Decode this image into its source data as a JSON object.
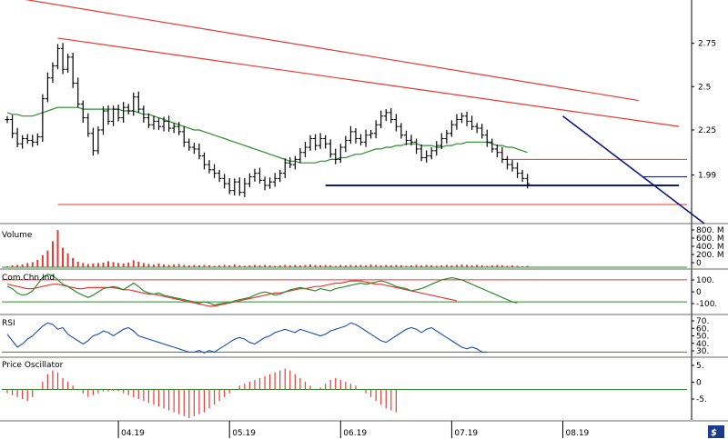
{
  "colors": {
    "background": "#ffffff",
    "price_bars": "#000000",
    "trend_channel": "#e53935",
    "moving_average": "#2e8b2e",
    "trendline": "#0d1a80",
    "volume_bars": "#e53935",
    "cci_fast": "#2e8b2e",
    "cci_slow": "#e53935",
    "rsi_line": "#1f4fb0",
    "oscillator_bars": "#e53935",
    "reference_lines": "#2e8b2e"
  },
  "x_axis": {
    "labels": [
      "04.19",
      "05.19",
      "06.19",
      "07.19",
      "08.19"
    ],
    "label_index": [
      22,
      44,
      66,
      88,
      110
    ]
  },
  "panels": {
    "volume": {
      "label": "Volume",
      "ticks": [
        "800. M",
        "600. M",
        "400. M",
        "200. M",
        "0"
      ]
    },
    "cci": {
      "label": "Com.Chn.Ind",
      "ticks": [
        "100.",
        "0",
        "-100."
      ]
    },
    "rsi": {
      "label": "RSI",
      "ticks": [
        "70.",
        "60.",
        "50.",
        "40.",
        "30."
      ]
    },
    "osc": {
      "label": "Price Oscillator",
      "ticks": [
        "5.",
        "0",
        "-5."
      ]
    }
  },
  "chart_data": [
    {
      "type": "ohlc",
      "y_ticks": [
        "2.75",
        "2.5",
        "2.25",
        "1.99"
      ],
      "y_tick_values": [
        2.75,
        2.5,
        2.25,
        1.99
      ],
      "ylim": [
        1.72,
        3.0
      ],
      "close": [
        2.31,
        2.23,
        2.17,
        2.2,
        2.19,
        2.18,
        2.21,
        2.43,
        2.55,
        2.62,
        2.72,
        2.6,
        2.67,
        2.52,
        2.4,
        2.32,
        2.23,
        2.13,
        2.25,
        2.36,
        2.3,
        2.37,
        2.32,
        2.38,
        2.36,
        2.44,
        2.37,
        2.32,
        2.28,
        2.3,
        2.27,
        2.3,
        2.26,
        2.27,
        2.24,
        2.18,
        2.15,
        2.14,
        2.1,
        2.05,
        2.02,
        2.0,
        1.97,
        1.94,
        1.9,
        1.95,
        1.89,
        1.94,
        1.98,
        2.0,
        1.96,
        1.93,
        1.95,
        1.97,
        2.0,
        2.06,
        2.05,
        2.08,
        2.12,
        2.15,
        2.2,
        2.16,
        2.2,
        2.17,
        2.11,
        2.08,
        2.15,
        2.19,
        2.24,
        2.2,
        2.18,
        2.22,
        2.23,
        2.28,
        2.33,
        2.35,
        2.31,
        2.27,
        2.22,
        2.19,
        2.18,
        2.14,
        2.09,
        2.1,
        2.13,
        2.16,
        2.2,
        2.23,
        2.28,
        2.31,
        2.33,
        2.3,
        2.27,
        2.26,
        2.22,
        2.18,
        2.14,
        2.12,
        2.08,
        2.05,
        2.03,
        2.0,
        1.97,
        1.94
      ],
      "trend_channel": {
        "upper": {
          "from": [
            0,
            3.02
          ],
          "to": [
            125,
            2.42
          ]
        },
        "lower": {
          "from": [
            10,
            2.78
          ],
          "to": [
            133,
            2.27
          ]
        }
      },
      "moving_average": [
        2.35,
        2.34,
        2.34,
        2.33,
        2.33,
        2.33,
        2.34,
        2.35,
        2.36,
        2.37,
        2.38,
        2.38,
        2.38,
        2.38,
        2.38,
        2.37,
        2.37,
        2.37,
        2.37,
        2.37,
        2.37,
        2.37,
        2.37,
        2.36,
        2.36,
        2.36,
        2.35,
        2.34,
        2.34,
        2.33,
        2.32,
        2.31,
        2.3,
        2.29,
        2.28,
        2.27,
        2.26,
        2.25,
        2.25,
        2.24,
        2.23,
        2.22,
        2.21,
        2.2,
        2.19,
        2.18,
        2.17,
        2.16,
        2.15,
        2.14,
        2.13,
        2.12,
        2.11,
        2.1,
        2.09,
        2.08,
        2.07,
        2.07,
        2.06,
        2.06,
        2.06,
        2.06,
        2.07,
        2.07,
        2.08,
        2.08,
        2.09,
        2.09,
        2.1,
        2.11,
        2.11,
        2.12,
        2.13,
        2.14,
        2.14,
        2.15,
        2.15,
        2.16,
        2.16,
        2.17,
        2.17,
        2.17,
        2.16,
        2.16,
        2.16,
        2.15,
        2.15,
        2.16,
        2.16,
        2.17,
        2.17,
        2.18,
        2.18,
        2.18,
        2.18,
        2.18,
        2.17,
        2.16,
        2.16,
        2.15,
        2.15,
        2.14,
        2.13,
        2.12
      ],
      "horizontal_lines": [
        {
          "y": 1.93,
          "from": 63,
          "to": 133,
          "color": "trendline",
          "width": 2
        },
        {
          "y": 1.98,
          "from": 126,
          "to": 137,
          "color": "trendline",
          "width": 1
        },
        {
          "y": 2.08,
          "from": 98,
          "to": 137,
          "color": "trend_channel",
          "width": 1
        },
        {
          "y": 1.82,
          "from": 10,
          "to": 137,
          "color": "trend_channel",
          "width": 1
        }
      ],
      "downtrend_line": {
        "from": [
          110,
          2.33
        ],
        "to": [
          138,
          1.71
        ]
      }
    },
    {
      "type": "bar",
      "name": "Volume",
      "ylim": [
        0,
        900
      ],
      "values": [
        20,
        40,
        50,
        60,
        90,
        110,
        160,
        260,
        360,
        560,
        800,
        420,
        300,
        200,
        120,
        90,
        70,
        80,
        90,
        100,
        130,
        110,
        90,
        80,
        100,
        150,
        120,
        90,
        70,
        60,
        80,
        60,
        50,
        60,
        70,
        50,
        40,
        50,
        40,
        50,
        40,
        30,
        40,
        50,
        40,
        60,
        40,
        30,
        40,
        50,
        40,
        50,
        40,
        30,
        40,
        50,
        40,
        50,
        40,
        50,
        60,
        50,
        40,
        50,
        40,
        30,
        50,
        40,
        50,
        40,
        50,
        40,
        60,
        50,
        40,
        50,
        40,
        50,
        40,
        30,
        40,
        50,
        40,
        50,
        40,
        30,
        40,
        50,
        40,
        50,
        60,
        50,
        40,
        50,
        40,
        30,
        40,
        50,
        40,
        30,
        40,
        30,
        20,
        30
      ]
    },
    {
      "type": "line",
      "name": "Com.Chn.Ind",
      "ylim": [
        -190,
        190
      ],
      "reference_lines": [
        100,
        -100
      ],
      "fast": [
        40,
        20,
        -20,
        -40,
        -30,
        0,
        60,
        120,
        150,
        140,
        100,
        60,
        40,
        10,
        -20,
        -40,
        -60,
        -40,
        -10,
        20,
        30,
        40,
        30,
        10,
        40,
        70,
        40,
        0,
        -20,
        -30,
        -20,
        -40,
        -50,
        -60,
        -70,
        -80,
        -90,
        -100,
        -110,
        -100,
        -110,
        -130,
        -120,
        -110,
        -110,
        -90,
        -80,
        -70,
        -60,
        -40,
        -20,
        -10,
        -20,
        -40,
        -30,
        -10,
        10,
        20,
        30,
        20,
        10,
        0,
        20,
        10,
        0,
        20,
        30,
        40,
        50,
        60,
        70,
        60,
        70,
        80,
        90,
        80,
        60,
        40,
        30,
        20,
        0,
        10,
        20,
        40,
        60,
        80,
        100,
        110,
        120,
        110,
        100,
        80,
        60,
        40,
        20,
        0,
        -20,
        -40,
        -60,
        -80,
        -100,
        -110
      ],
      "slow": [
        60,
        50,
        40,
        30,
        20,
        20,
        30,
        40,
        50,
        60,
        60,
        50,
        40,
        30,
        20,
        20,
        30,
        30,
        30,
        30,
        30,
        30,
        20,
        10,
        10,
        0,
        -10,
        -20,
        -30,
        -30,
        -40,
        -50,
        -60,
        -70,
        -80,
        -90,
        -100,
        -110,
        -120,
        -130,
        -140,
        -140,
        -130,
        -120,
        -110,
        -100,
        -90,
        -80,
        -70,
        -60,
        -50,
        -40,
        -30,
        -20,
        -20,
        -10,
        0,
        10,
        20,
        20,
        30,
        40,
        40,
        50,
        60,
        70,
        70,
        80,
        90,
        90,
        90,
        80,
        70,
        60,
        60,
        50,
        40,
        30,
        20,
        10,
        0,
        -10,
        -20,
        -30,
        -40,
        -50,
        -60,
        -70,
        -80,
        -90
      ]
    },
    {
      "type": "line",
      "name": "RSI",
      "ylim": [
        26,
        74
      ],
      "reference_lines": [
        30
      ],
      "values": [
        52,
        44,
        36,
        40,
        46,
        50,
        56,
        62,
        66,
        64,
        58,
        60,
        52,
        48,
        44,
        40,
        44,
        50,
        52,
        56,
        54,
        50,
        54,
        58,
        60,
        56,
        50,
        48,
        46,
        44,
        42,
        40,
        38,
        36,
        34,
        32,
        30,
        30,
        32,
        29,
        32,
        30,
        34,
        38,
        42,
        46,
        48,
        46,
        42,
        40,
        44,
        48,
        50,
        54,
        56,
        58,
        56,
        54,
        58,
        56,
        54,
        52,
        50,
        52,
        56,
        58,
        60,
        62,
        66,
        64,
        60,
        56,
        52,
        48,
        44,
        42,
        46,
        50,
        54,
        58,
        60,
        58,
        54,
        58,
        60,
        56,
        52,
        48,
        44,
        40,
        36,
        34,
        36,
        34,
        30,
        30
      ],
      "color": "rsi_line"
    },
    {
      "type": "bar",
      "name": "Price Oscillator",
      "ylim": [
        -8,
        8
      ],
      "reference_lines": [
        0
      ],
      "values": [
        -1,
        -1.5,
        -2,
        -2.5,
        -3,
        -2,
        0,
        2,
        4,
        5,
        4.5,
        3,
        2,
        1,
        0,
        -1,
        -2,
        -1.5,
        -1,
        -0.5,
        -0.5,
        -0.3,
        -0.5,
        -1,
        -1.5,
        -2,
        -2.5,
        -3,
        -3.5,
        -4,
        -4.5,
        -5,
        -5.5,
        -6,
        -6.5,
        -7,
        -7.5,
        -7,
        -6.5,
        -6,
        -5,
        -4,
        -3,
        -2,
        -1,
        0,
        1,
        1.5,
        2,
        2.5,
        3,
        3.5,
        4,
        4.5,
        5,
        5.5,
        5,
        4,
        3,
        2,
        1,
        0,
        0.5,
        1.5,
        2.5,
        3,
        2.5,
        2,
        1.5,
        1,
        0,
        -1,
        -2,
        -3,
        -4,
        -5,
        -5.5,
        -6
      ]
    }
  ]
}
